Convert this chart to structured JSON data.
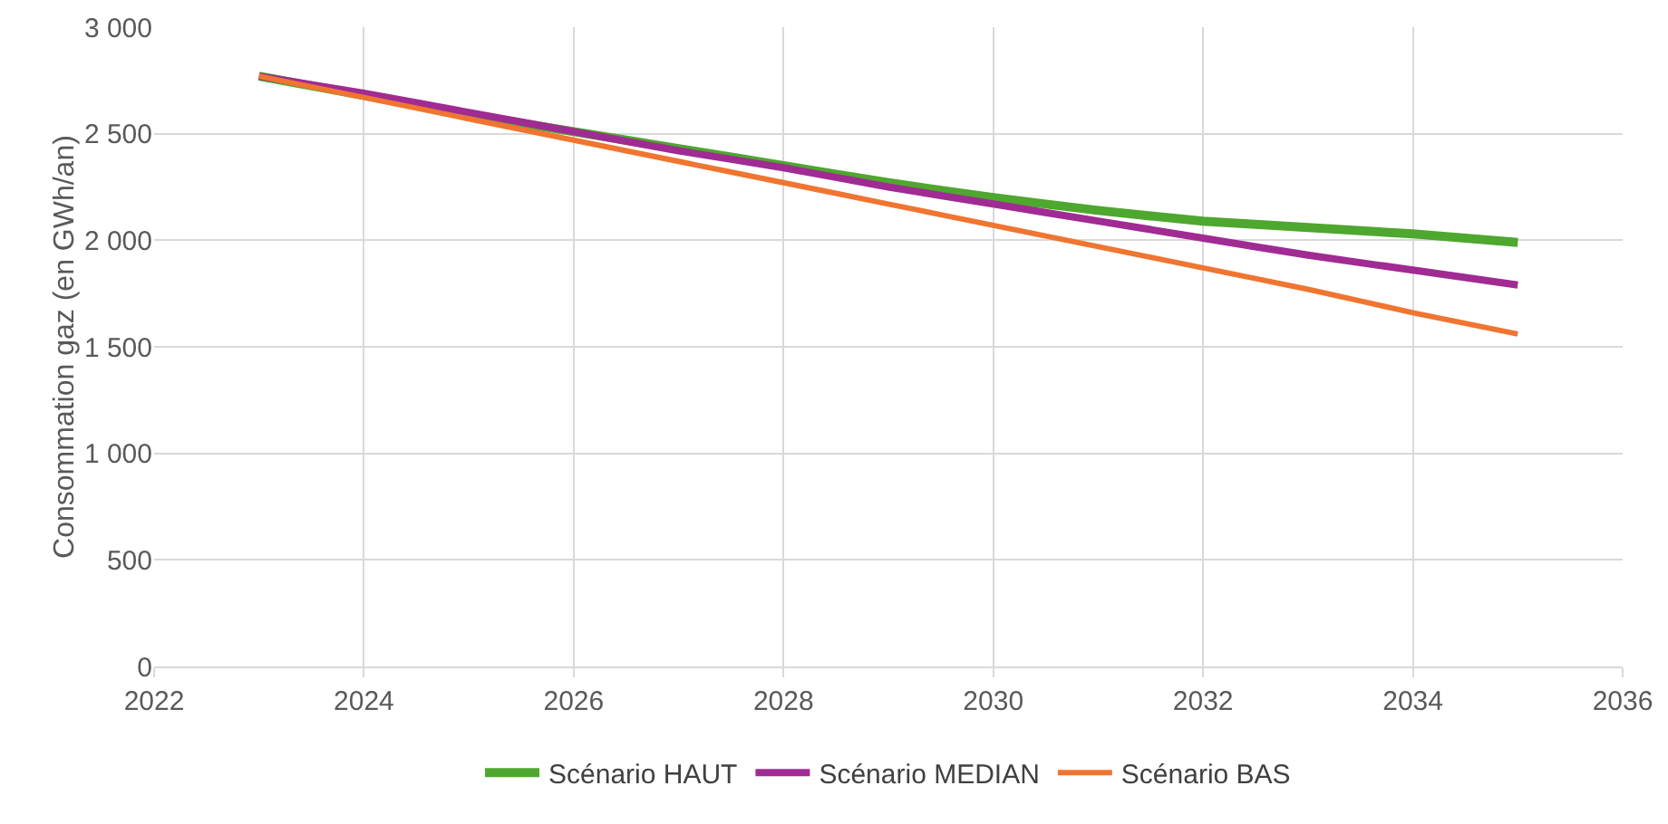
{
  "chart_data": {
    "type": "line",
    "ylabel": "Consommation gaz (en GWh/an)",
    "x": [
      2023,
      2024,
      2025,
      2026,
      2027,
      2028,
      2029,
      2030,
      2031,
      2032,
      2033,
      2034,
      2035
    ],
    "series": [
      {
        "name": "Scénario HAUT",
        "color": "#4ea72e",
        "values": [
          2770,
          2680,
          2590,
          2510,
          2430,
          2350,
          2270,
          2200,
          2140,
          2090,
          2060,
          2030,
          1990
        ]
      },
      {
        "name": "Scénario MEDIAN",
        "color": "#a02b93",
        "values": [
          2770,
          2690,
          2600,
          2510,
          2420,
          2340,
          2250,
          2170,
          2090,
          2010,
          1930,
          1860,
          1790
        ]
      },
      {
        "name": "Scénario BAS",
        "color": "#f07530",
        "values": [
          2770,
          2670,
          2570,
          2470,
          2370,
          2270,
          2170,
          2070,
          1970,
          1870,
          1770,
          1660,
          1560
        ]
      }
    ],
    "xlim": [
      2022,
      2036
    ],
    "xticks": [
      2022,
      2024,
      2026,
      2028,
      2030,
      2032,
      2034,
      2036
    ],
    "ylim": [
      0,
      3000
    ],
    "yticks": [
      {
        "value": 0,
        "label": "0"
      },
      {
        "value": 500,
        "label": "500"
      },
      {
        "value": 1000,
        "label": "1 000"
      },
      {
        "value": 1500,
        "label": "1 500"
      },
      {
        "value": 2000,
        "label": "2 000"
      },
      {
        "value": 2500,
        "label": "2 500"
      },
      {
        "value": 3000,
        "label": "3 000"
      }
    ],
    "grid": true,
    "legend": "bottom",
    "marker": "none",
    "line_style": "solid"
  }
}
